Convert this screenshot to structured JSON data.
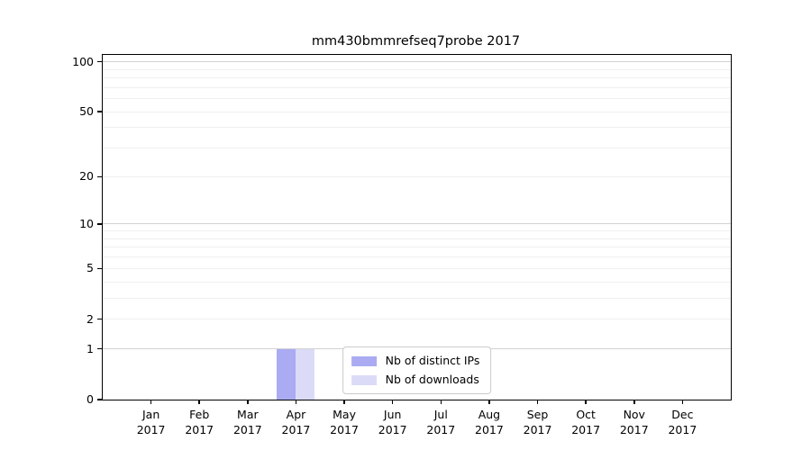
{
  "title": "mm430bmmrefseq7probe 2017",
  "chart_data": {
    "type": "bar",
    "title": "mm430bmmrefseq7probe 2017",
    "xlabel": "",
    "ylabel": "",
    "categories": [
      "Jan",
      "Feb",
      "Mar",
      "Apr",
      "May",
      "Jun",
      "Jul",
      "Aug",
      "Sep",
      "Oct",
      "Nov",
      "Dec"
    ],
    "category_year": "2017",
    "series": [
      {
        "name": "Nb of distinct IPs",
        "color": "#aaabf2",
        "values": [
          0,
          0,
          0,
          1,
          0,
          0,
          0,
          0,
          0,
          0,
          0,
          0
        ]
      },
      {
        "name": "Nb of downloads",
        "color": "#dbdbf8",
        "values": [
          0,
          0,
          0,
          1,
          0,
          0,
          0,
          0,
          0,
          0,
          0,
          0
        ]
      }
    ],
    "yscale": "log1p",
    "ylim": [
      0,
      110
    ],
    "yticks": [
      0,
      1,
      2,
      5,
      10,
      20,
      50,
      100
    ],
    "grid": {
      "major_lines": [
        1,
        10,
        100
      ],
      "minor_lines": [
        2,
        3,
        4,
        5,
        6,
        7,
        8,
        9,
        20,
        30,
        40,
        50,
        60,
        70,
        80,
        90
      ],
      "major_color": "#d2d2d2",
      "minor_color": "#efefef"
    },
    "legend": {
      "position": "lower center inside",
      "entries": [
        "Nb of distinct IPs",
        "Nb of downloads"
      ]
    },
    "axis_color": "#000000",
    "text_color": "#000000"
  }
}
